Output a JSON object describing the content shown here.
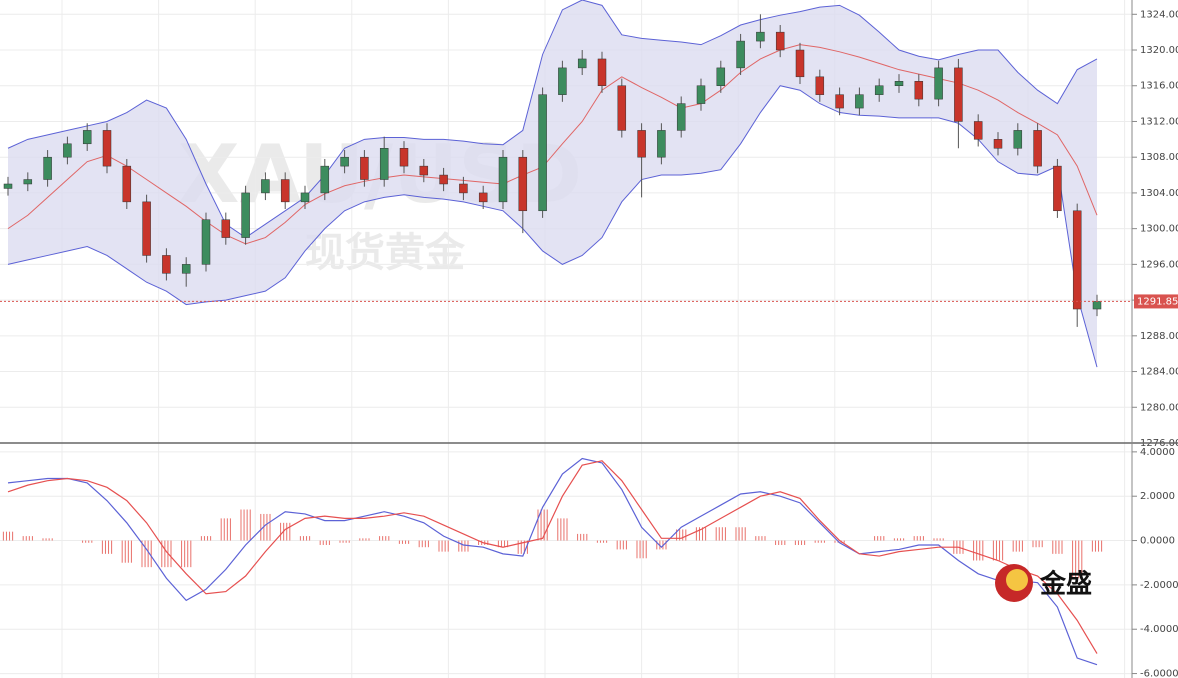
{
  "chart_data": [
    {
      "type": "candlestick",
      "ylim": [
        1276,
        1325.6
      ],
      "yticks": [
        {
          "value": 1276,
          "label": "1276.00"
        },
        {
          "value": 1280,
          "label": "1280.00"
        },
        {
          "value": 1284,
          "label": "1284.00"
        },
        {
          "value": 1288,
          "label": "1288.00"
        },
        {
          "value": 1292,
          "label": "1292.00"
        },
        {
          "value": 1296,
          "label": "1296.00"
        },
        {
          "value": 1300,
          "label": "1300.00"
        },
        {
          "value": 1304,
          "label": "1304.00"
        },
        {
          "value": 1308,
          "label": "1308.00"
        },
        {
          "value": 1312,
          "label": "1312.00"
        },
        {
          "value": 1316,
          "label": "1316.00"
        },
        {
          "value": 1320,
          "label": "1320.00"
        },
        {
          "value": 1324,
          "label": "1324.00"
        }
      ],
      "grid": true,
      "up_color": "#3d8c5e",
      "down_color": "#c8352b",
      "open": [
        1304.5,
        1305,
        1305.5,
        1308,
        1309.5,
        1311,
        1307,
        1303,
        1297,
        1295,
        1296,
        1301,
        1299,
        1304,
        1305.5,
        1303,
        1304,
        1307,
        1308,
        1305.5,
        1309,
        1307,
        1306,
        1305,
        1304,
        1303,
        1308,
        1302,
        1315,
        1318,
        1319,
        1316,
        1311,
        1308,
        1311,
        1314,
        1316,
        1318,
        1321,
        1322,
        1320,
        1317,
        1315,
        1313.5,
        1315,
        1316,
        1316.5,
        1314.5,
        1318,
        1312,
        1310,
        1309,
        1311,
        1307,
        1302,
        1291
      ],
      "high": [
        1305.8,
        1306.3,
        1308.8,
        1310.3,
        1311.8,
        1311.8,
        1307.8,
        1303.8,
        1297.8,
        1296.8,
        1301.8,
        1301.8,
        1304.8,
        1306.3,
        1306.3,
        1304.8,
        1307.8,
        1308.8,
        1308.8,
        1310.3,
        1309.8,
        1307.8,
        1306.8,
        1305.8,
        1304.8,
        1308.8,
        1308.8,
        1315.8,
        1318.8,
        1320,
        1319.8,
        1316.8,
        1311.8,
        1311.8,
        1314.8,
        1316.8,
        1318.8,
        1321.8,
        1324,
        1322.8,
        1320.8,
        1317.8,
        1315.8,
        1315.8,
        1316.8,
        1317.3,
        1317.3,
        1318.8,
        1319,
        1312.8,
        1310.8,
        1311.8,
        1311.8,
        1307.8,
        1302.8,
        1292.6
      ],
      "low": [
        1303.7,
        1304.2,
        1304.7,
        1307.2,
        1308.7,
        1306.2,
        1302.2,
        1296.2,
        1294.2,
        1293.5,
        1295.2,
        1298.2,
        1298.2,
        1303.2,
        1302.2,
        1302.2,
        1303.2,
        1306.2,
        1304.7,
        1304.7,
        1306.2,
        1305.2,
        1304.2,
        1303.2,
        1302.2,
        1302.2,
        1299.5,
        1301.2,
        1314.2,
        1317.2,
        1315.2,
        1310.2,
        1303.5,
        1307.2,
        1310.2,
        1313.2,
        1315.2,
        1317.2,
        1320.2,
        1319.2,
        1316.2,
        1314.2,
        1312.7,
        1312.7,
        1314.2,
        1315.2,
        1313.7,
        1313.7,
        1309,
        1309.2,
        1308.2,
        1308.2,
        1306.2,
        1301.2,
        1289,
        1290.2
      ],
      "close": [
        1305,
        1305.5,
        1308,
        1309.5,
        1311,
        1307,
        1303,
        1297,
        1295,
        1296,
        1301,
        1299,
        1304,
        1305.5,
        1303,
        1304,
        1307,
        1308,
        1305.5,
        1309,
        1307,
        1306,
        1305,
        1304,
        1303,
        1308,
        1302,
        1315,
        1318,
        1319,
        1316,
        1311,
        1308,
        1311,
        1314,
        1316,
        1318,
        1321,
        1322,
        1320,
        1317,
        1315,
        1313.5,
        1315,
        1316,
        1316.5,
        1314.5,
        1318,
        1312,
        1310,
        1309,
        1311,
        1307,
        1302,
        1291,
        1291.85
      ],
      "band_fill": "#dcdcf0",
      "overlays": [
        {
          "color": "#5c62d6",
          "values": [
            1309,
            1310,
            1310.5,
            1311,
            1311.5,
            1312,
            1313,
            1314.4,
            1313.5,
            1310,
            1305,
            1300.5,
            1299,
            1300.5,
            1302,
            1303.5,
            1306,
            1309,
            1310,
            1310.2,
            1310.2,
            1310,
            1310,
            1309.8,
            1309.5,
            1309.4,
            1311,
            1319.5,
            1324.5,
            1325.6,
            1325,
            1321.7,
            1321.3,
            1321.1,
            1320.9,
            1320.6,
            1321.6,
            1322.8,
            1323.4,
            1323.9,
            1324.3,
            1324.8,
            1325,
            1323.9,
            1322,
            1320,
            1319.3,
            1318.9,
            1319.5,
            1320,
            1320,
            1317.5,
            1315.5,
            1314,
            1317.8,
            1319
          ]
        },
        {
          "color": "#e06666",
          "values": [
            1300,
            1301.5,
            1303.5,
            1305.5,
            1307.5,
            1308.2,
            1307,
            1305.5,
            1304,
            1302.5,
            1300.8,
            1299.3,
            1298.3,
            1299,
            1300.7,
            1302.7,
            1303.9,
            1304.8,
            1305.3,
            1305.7,
            1306,
            1305.8,
            1305.6,
            1305.4,
            1305.2,
            1305,
            1306,
            1306.9,
            1309.5,
            1312,
            1315.5,
            1317,
            1315.8,
            1314.7,
            1313.5,
            1314,
            1315.5,
            1317.5,
            1319,
            1320,
            1320.6,
            1320.3,
            1319.8,
            1319.2,
            1318.5,
            1317.8,
            1317.3,
            1316.8,
            1316.3,
            1315.5,
            1314.4,
            1313,
            1311.8,
            1310.5,
            1307,
            1301.5
          ]
        },
        {
          "color": "#5c62d6",
          "values": [
            1296,
            1296.5,
            1297,
            1297.5,
            1298,
            1297,
            1295.5,
            1294,
            1293,
            1291.5,
            1291.8,
            1292,
            1292.5,
            1293,
            1294.5,
            1297.5,
            1300,
            1302,
            1303,
            1303.5,
            1303.8,
            1303.5,
            1303.3,
            1303,
            1302.5,
            1302,
            1300,
            1297.5,
            1296,
            1297,
            1299,
            1303,
            1305.5,
            1306,
            1306,
            1306.2,
            1306.6,
            1309.5,
            1313,
            1316,
            1315.5,
            1314,
            1313,
            1312.7,
            1312.6,
            1312.4,
            1312.4,
            1312.4,
            1311.8,
            1310,
            1307.5,
            1306.2,
            1306,
            1307,
            1292.5,
            1284.5
          ]
        }
      ],
      "last_price": 1291.85,
      "last_price_color": "#d9534f",
      "watermark": [
        "XAU/USD",
        "现货黄金"
      ]
    },
    {
      "type": "macd",
      "ylim": [
        -6.2,
        4.4
      ],
      "yticks": [
        {
          "value": -6,
          "label": "-6.0000"
        },
        {
          "value": -4,
          "label": "-4.0000"
        },
        {
          "value": -2,
          "label": "-2.0000"
        },
        {
          "value": 0,
          "label": "0.0000"
        },
        {
          "value": 2,
          "label": "2.0000"
        },
        {
          "value": 4,
          "label": "4.0000"
        }
      ],
      "grid": true,
      "lines": [
        {
          "color": "#5c62d6",
          "values": [
            2.6,
            2.7,
            2.8,
            2.8,
            2.6,
            1.8,
            0.8,
            -0.4,
            -1.7,
            -2.7,
            -2.2,
            -1.3,
            -0.2,
            0.7,
            1.3,
            1.2,
            0.9,
            0.9,
            1.1,
            1.3,
            1.1,
            0.8,
            0.2,
            -0.2,
            -0.3,
            -0.6,
            -0.7,
            1.5,
            3.0,
            3.7,
            3.5,
            2.3,
            0.6,
            -0.3,
            0.6,
            1.1,
            1.6,
            2.1,
            2.2,
            2.0,
            1.7,
            0.8,
            -0.1,
            -0.6,
            -0.5,
            -0.4,
            -0.2,
            -0.2,
            -0.9,
            -1.5,
            -1.8,
            -1.8,
            -1.9,
            -3.0,
            -5.3,
            -5.6
          ]
        },
        {
          "color": "#e65050",
          "values": [
            2.2,
            2.5,
            2.7,
            2.8,
            2.7,
            2.4,
            1.8,
            0.8,
            -0.5,
            -1.5,
            -2.4,
            -2.3,
            -1.6,
            -0.5,
            0.5,
            1.0,
            1.1,
            1.0,
            1.0,
            1.1,
            1.25,
            1.1,
            0.7,
            0.3,
            -0.1,
            -0.3,
            -0.1,
            0.1,
            2.0,
            3.4,
            3.6,
            2.7,
            1.4,
            0.1,
            0.1,
            0.5,
            1.0,
            1.5,
            2.0,
            2.2,
            1.9,
            0.9,
            0,
            -0.6,
            -0.7,
            -0.5,
            -0.4,
            -0.3,
            -0.3,
            -0.6,
            -0.9,
            -1.3,
            -1.6,
            -2.4,
            -3.6,
            -5.1
          ]
        }
      ],
      "histogram": {
        "color": "#e8706a",
        "values": [
          0.4,
          0.2,
          0.1,
          0,
          -0.1,
          -0.6,
          -1,
          -1.2,
          -1.2,
          -1.2,
          0.2,
          1,
          1.4,
          1.2,
          0.8,
          0.2,
          -0.2,
          -0.1,
          0.1,
          0.2,
          -0.15,
          -0.3,
          -0.5,
          -0.5,
          -0.2,
          -0.3,
          -0.6,
          1.4,
          1,
          0.3,
          -0.1,
          -0.4,
          -0.8,
          -0.4,
          0.5,
          0.6,
          0.6,
          0.6,
          0.2,
          -0.2,
          -0.2,
          -0.1,
          -0.1,
          0,
          0.2,
          0.1,
          0.2,
          0.1,
          -0.6,
          -0.9,
          -0.9,
          -0.5,
          -0.3,
          -0.6,
          -1.7,
          -0.5
        ]
      }
    }
  ],
  "logo": "金盛"
}
